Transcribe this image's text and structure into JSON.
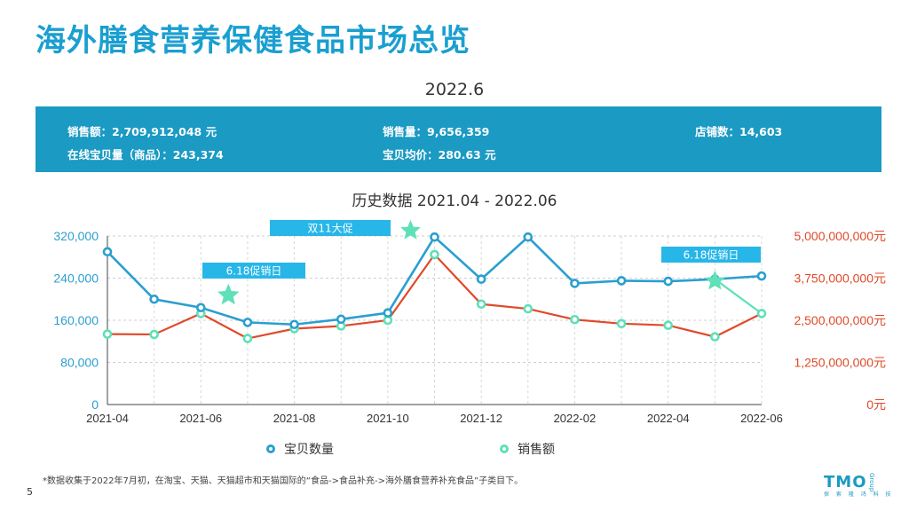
{
  "page": {
    "title": "海外膳食营养保健食品市场总览",
    "date": "2022.6",
    "chart_title": "历史数据 2021.04 - 2022.06",
    "footnote": "*数据收集于2022年7月初，在淘宝、天猫、天猫超市和天猫国际的“食品->食品补充->海外膳食营养补充食品”子类目下。",
    "page_number": "5",
    "logo_text": "TMO",
    "logo_group": "Group",
    "logo_cn": "探 索 隆 鸿 科 技"
  },
  "summary": {
    "sales_amount": "销售额：2,709,912,048 元",
    "online_items": "在线宝贝量（商品）：243,374",
    "sales_volume": "销售量：9,656,359",
    "avg_price": "宝贝均价：280.63 元",
    "store_count": "店铺数：14,603"
  },
  "colors": {
    "title": "#1a9fd0",
    "items_line": "#2a9fd0",
    "sales_line": "#e04a2a",
    "sales_marker": "#5ee0b8",
    "callout": "#27b6e8",
    "star": "#5ee0b8"
  },
  "chart_data": {
    "type": "line",
    "x": [
      "2021-04",
      "2021-05",
      "2021-06",
      "2021-07",
      "2021-08",
      "2021-09",
      "2021-10",
      "2021-11",
      "2021-12",
      "2022-01",
      "2022-02",
      "2022-03",
      "2022-04",
      "2022-05",
      "2022-06"
    ],
    "x_tick_labels": [
      "2021-04",
      "2021-06",
      "2021-08",
      "2021-10",
      "2021-12",
      "2022-02",
      "2022-04",
      "2022-06"
    ],
    "series": [
      {
        "name": "宝贝数量",
        "axis": "left",
        "values": [
          290000,
          200000,
          184000,
          156000,
          152000,
          162000,
          174000,
          318000,
          238000,
          318000,
          230000,
          235000,
          234000,
          238000,
          244000
        ]
      },
      {
        "name": "销售额",
        "axis": "right",
        "values": [
          2090000000,
          2080000000,
          2700000000,
          1960000000,
          2250000000,
          2330000000,
          2500000000,
          4450000000,
          2980000000,
          2840000000,
          2520000000,
          2400000000,
          2350000000,
          2010000000,
          2700000000
        ]
      }
    ],
    "left_axis": {
      "ylim": [
        0,
        320000
      ],
      "ticks": [
        0,
        80000,
        160000,
        240000,
        320000
      ],
      "tick_labels": [
        "0",
        "80,000",
        "160,000",
        "240,000",
        "320,000"
      ]
    },
    "right_axis": {
      "ylim": [
        0,
        5000000000
      ],
      "ticks": [
        0,
        1250000000,
        2500000000,
        3750000000,
        5000000000
      ],
      "tick_labels": [
        "0元",
        "1,250,000,000元",
        "2,500,000,000元",
        "3,750,000,000元",
        "5,000,000,000元"
      ]
    },
    "grid": true,
    "legend": "bottom",
    "annotations": [
      {
        "text": "6.18促销日",
        "x": "2021-06"
      },
      {
        "text": "双11大促",
        "x": "2021-11"
      },
      {
        "text": "6.18促销日",
        "x": "2022-06"
      }
    ]
  }
}
